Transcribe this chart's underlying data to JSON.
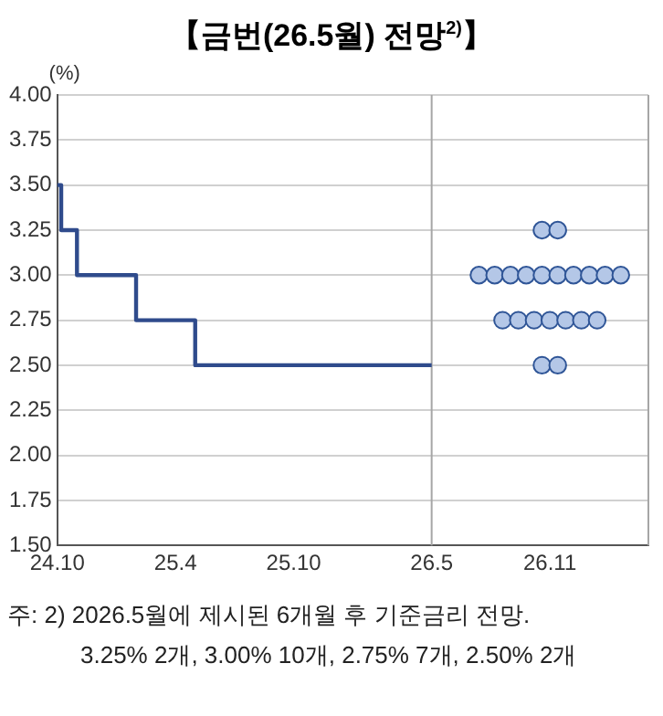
{
  "chart_data": {
    "type": "step",
    "title": "【금번(26.5월)  전망$^{2)}$】",
    "ylabel": "(%)",
    "xlim": [
      "2024-10",
      "2027-04"
    ],
    "xticks": [
      {
        "value": "2024-10",
        "label": "24.10"
      },
      {
        "value": "2025-04",
        "label": "25.4"
      },
      {
        "value": "2025-10",
        "label": "25.10"
      },
      {
        "value": "2026-05",
        "label": "26.5"
      },
      {
        "value": "2026-11",
        "label": "26.11"
      }
    ],
    "ylim": [
      1.5,
      4.0
    ],
    "yticks": [
      {
        "value": 1.5,
        "label": "1.50"
      },
      1.75,
      {
        "value": 2.0,
        "label": "2.00"
      },
      2.25,
      {
        "value": 2.5,
        "label": "2.50"
      },
      2.75,
      {
        "value": 3.0,
        "label": "3.00"
      },
      3.25,
      {
        "value": 3.5,
        "label": "3.50"
      },
      3.75,
      {
        "value": 4.0,
        "label": "4.00"
      }
    ],
    "grid": "y",
    "legend": false,
    "ref_lines": [
      {
        "axis": "x",
        "value": "2026-05",
        "color": "#a6a6a6"
      }
    ],
    "series": [
      {
        "color": "#2f4b8c",
        "x": [
          "2024-10",
          "2024-10-07",
          "2024-11",
          "2025-02",
          "2025-05",
          "2026-05"
        ],
        "values": [
          3.5,
          3.25,
          3.0,
          2.75,
          2.5,
          2.5
        ]
      },
      {
        "type": "scatter",
        "color": "#b4c7e7",
        "marker": "circle",
        "x": [
          "2026-10-19",
          "2026-11-13",
          "2026-07-13",
          "2026-08-07",
          "2026-09-01",
          "2026-09-25",
          "2026-10-19",
          "2026-11-13",
          "2026-12-07",
          "2027-01-01",
          "2027-01-25",
          "2027-02-19",
          "2026-08-19",
          "2026-09-13",
          "2026-10-07",
          "2026-11-01",
          "2026-11-25",
          "2026-12-19",
          "2027-01-13",
          "2026-10-19",
          "2026-11-13"
        ],
        "values": [
          3.25,
          3.25,
          3.0,
          3.0,
          3.0,
          3.0,
          3.0,
          3.0,
          3.0,
          3.0,
          3.0,
          3.0,
          2.75,
          2.75,
          2.75,
          2.75,
          2.75,
          2.75,
          2.75,
          2.5,
          2.5
        ]
      }
    ],
    "annotations": [
      "주: 2) 2026.5월에 제시된 6개월 후 기준금리 전망.",
      "3.25% 2개,  3.00% 10개,  2.75% 7개,  2.50% 2개"
    ]
  }
}
